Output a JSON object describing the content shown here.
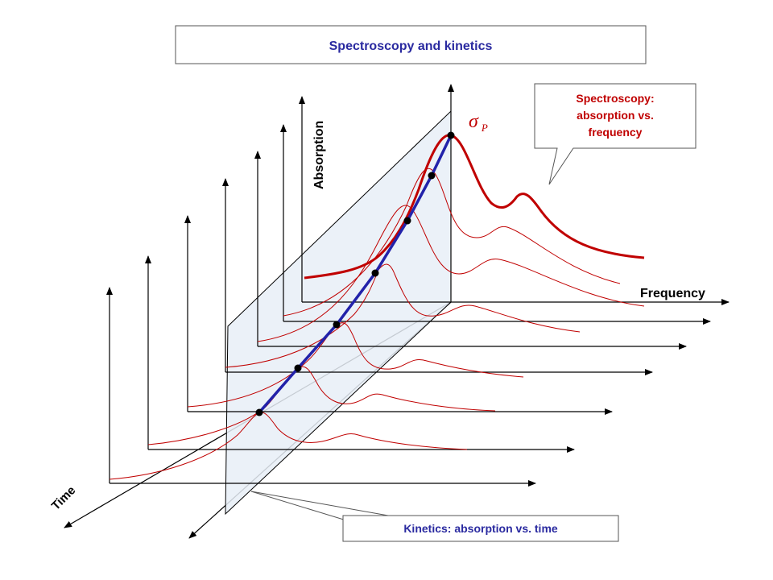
{
  "title": "Spectroscopy and kinetics",
  "callout_spectroscopy": {
    "line1": "Spectroscopy:",
    "line2": "absorption vs.",
    "line3": "frequency"
  },
  "callout_kinetics": "Kinetics: absorption vs. time",
  "axes": {
    "absorption": "Absorption",
    "frequency": "Frequency",
    "time": "Time"
  },
  "peak_symbol": {
    "sigma": "σ",
    "subscript": "P"
  },
  "colors": {
    "spectra": "#c00000",
    "kinetics": "#2222aa",
    "title_text": "#2a2aa0",
    "callout_text": "#c00000",
    "plane_fill": "#e8eef7"
  }
}
